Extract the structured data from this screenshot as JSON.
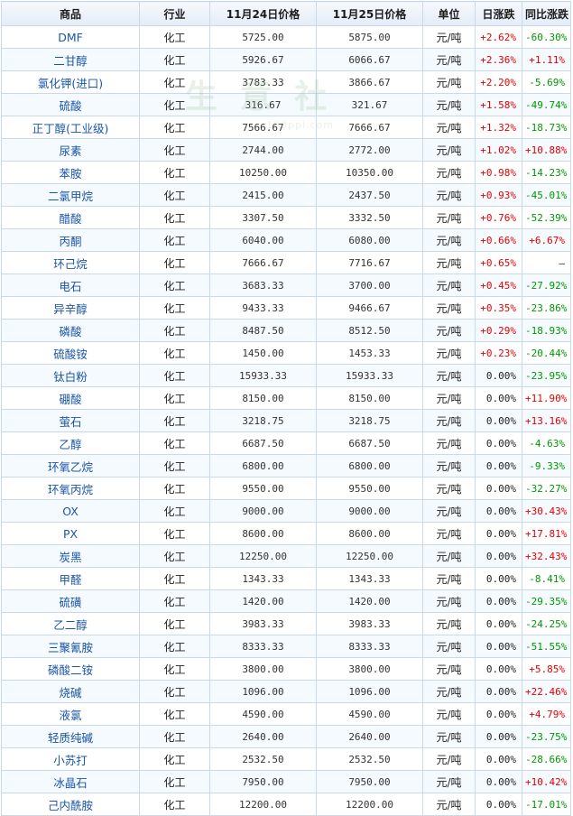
{
  "headers": {
    "name": "商品",
    "industry": "行业",
    "price_prev": "11月24日价格",
    "price_cur": "11月25日价格",
    "unit": "单位",
    "daily": "日涨跌",
    "yoy": "同比涨跌"
  },
  "watermark": {
    "text": "生 意 社",
    "sub": "100ppi.com"
  },
  "rows": [
    {
      "name": "DMF",
      "industry": "化工",
      "p1": "5725.00",
      "p2": "5875.00",
      "unit": "元/吨",
      "daily": "+2.62%",
      "yoy": "-60.30%"
    },
    {
      "name": "二甘醇",
      "industry": "化工",
      "p1": "5926.67",
      "p2": "6066.67",
      "unit": "元/吨",
      "daily": "+2.36%",
      "yoy": "+1.11%"
    },
    {
      "name": "氯化钾(进口)",
      "industry": "化工",
      "p1": "3783.33",
      "p2": "3866.67",
      "unit": "元/吨",
      "daily": "+2.20%",
      "yoy": "-5.69%"
    },
    {
      "name": "硫酸",
      "industry": "化工",
      "p1": "316.67",
      "p2": "321.67",
      "unit": "元/吨",
      "daily": "+1.58%",
      "yoy": "-49.74%"
    },
    {
      "name": "正丁醇(工业级)",
      "industry": "化工",
      "p1": "7566.67",
      "p2": "7666.67",
      "unit": "元/吨",
      "daily": "+1.32%",
      "yoy": "-18.73%"
    },
    {
      "name": "尿素",
      "industry": "化工",
      "p1": "2744.00",
      "p2": "2772.00",
      "unit": "元/吨",
      "daily": "+1.02%",
      "yoy": "+10.88%"
    },
    {
      "name": "苯胺",
      "industry": "化工",
      "p1": "10250.00",
      "p2": "10350.00",
      "unit": "元/吨",
      "daily": "+0.98%",
      "yoy": "-14.23%"
    },
    {
      "name": "二氯甲烷",
      "industry": "化工",
      "p1": "2415.00",
      "p2": "2437.50",
      "unit": "元/吨",
      "daily": "+0.93%",
      "yoy": "-45.01%"
    },
    {
      "name": "醋酸",
      "industry": "化工",
      "p1": "3307.50",
      "p2": "3332.50",
      "unit": "元/吨",
      "daily": "+0.76%",
      "yoy": "-52.39%"
    },
    {
      "name": "丙酮",
      "industry": "化工",
      "p1": "6040.00",
      "p2": "6080.00",
      "unit": "元/吨",
      "daily": "+0.66%",
      "yoy": "+6.67%"
    },
    {
      "name": "环己烷",
      "industry": "化工",
      "p1": "7666.67",
      "p2": "7716.67",
      "unit": "元/吨",
      "daily": "+0.65%",
      "yoy": "—"
    },
    {
      "name": "电石",
      "industry": "化工",
      "p1": "3683.33",
      "p2": "3700.00",
      "unit": "元/吨",
      "daily": "+0.45%",
      "yoy": "-27.92%"
    },
    {
      "name": "异辛醇",
      "industry": "化工",
      "p1": "9433.33",
      "p2": "9466.67",
      "unit": "元/吨",
      "daily": "+0.35%",
      "yoy": "-23.86%"
    },
    {
      "name": "磷酸",
      "industry": "化工",
      "p1": "8487.50",
      "p2": "8512.50",
      "unit": "元/吨",
      "daily": "+0.29%",
      "yoy": "-18.93%"
    },
    {
      "name": "硫酸铵",
      "industry": "化工",
      "p1": "1450.00",
      "p2": "1453.33",
      "unit": "元/吨",
      "daily": "+0.23%",
      "yoy": "-20.44%"
    },
    {
      "name": "钛白粉",
      "industry": "化工",
      "p1": "15933.33",
      "p2": "15933.33",
      "unit": "元/吨",
      "daily": "0.00%",
      "yoy": "-23.95%"
    },
    {
      "name": "硼酸",
      "industry": "化工",
      "p1": "8150.00",
      "p2": "8150.00",
      "unit": "元/吨",
      "daily": "0.00%",
      "yoy": "+11.90%"
    },
    {
      "name": "萤石",
      "industry": "化工",
      "p1": "3218.75",
      "p2": "3218.75",
      "unit": "元/吨",
      "daily": "0.00%",
      "yoy": "+13.16%"
    },
    {
      "name": "乙醇",
      "industry": "化工",
      "p1": "6687.50",
      "p2": "6687.50",
      "unit": "元/吨",
      "daily": "0.00%",
      "yoy": "-4.63%"
    },
    {
      "name": "环氧乙烷",
      "industry": "化工",
      "p1": "6800.00",
      "p2": "6800.00",
      "unit": "元/吨",
      "daily": "0.00%",
      "yoy": "-9.33%"
    },
    {
      "name": "环氧丙烷",
      "industry": "化工",
      "p1": "9550.00",
      "p2": "9550.00",
      "unit": "元/吨",
      "daily": "0.00%",
      "yoy": "-32.27%"
    },
    {
      "name": "OX",
      "industry": "化工",
      "p1": "9000.00",
      "p2": "9000.00",
      "unit": "元/吨",
      "daily": "0.00%",
      "yoy": "+30.43%"
    },
    {
      "name": "PX",
      "industry": "化工",
      "p1": "8600.00",
      "p2": "8600.00",
      "unit": "元/吨",
      "daily": "0.00%",
      "yoy": "+17.81%"
    },
    {
      "name": "炭黑",
      "industry": "化工",
      "p1": "12250.00",
      "p2": "12250.00",
      "unit": "元/吨",
      "daily": "0.00%",
      "yoy": "+32.43%"
    },
    {
      "name": "甲醛",
      "industry": "化工",
      "p1": "1343.33",
      "p2": "1343.33",
      "unit": "元/吨",
      "daily": "0.00%",
      "yoy": "-8.41%"
    },
    {
      "name": "硫磺",
      "industry": "化工",
      "p1": "1420.00",
      "p2": "1420.00",
      "unit": "元/吨",
      "daily": "0.00%",
      "yoy": "-29.35%"
    },
    {
      "name": "乙二醇",
      "industry": "化工",
      "p1": "3983.33",
      "p2": "3983.33",
      "unit": "元/吨",
      "daily": "0.00%",
      "yoy": "-24.25%"
    },
    {
      "name": "三聚氰胺",
      "industry": "化工",
      "p1": "8333.33",
      "p2": "8333.33",
      "unit": "元/吨",
      "daily": "0.00%",
      "yoy": "-51.55%"
    },
    {
      "name": "磷酸二铵",
      "industry": "化工",
      "p1": "3800.00",
      "p2": "3800.00",
      "unit": "元/吨",
      "daily": "0.00%",
      "yoy": "+5.85%"
    },
    {
      "name": "烧碱",
      "industry": "化工",
      "p1": "1096.00",
      "p2": "1096.00",
      "unit": "元/吨",
      "daily": "0.00%",
      "yoy": "+22.46%"
    },
    {
      "name": "液氯",
      "industry": "化工",
      "p1": "4590.00",
      "p2": "4590.00",
      "unit": "元/吨",
      "daily": "0.00%",
      "yoy": "+4.79%"
    },
    {
      "name": "轻质纯碱",
      "industry": "化工",
      "p1": "2640.00",
      "p2": "2640.00",
      "unit": "元/吨",
      "daily": "0.00%",
      "yoy": "-23.75%"
    },
    {
      "name": "小苏打",
      "industry": "化工",
      "p1": "2532.50",
      "p2": "2532.50",
      "unit": "元/吨",
      "daily": "0.00%",
      "yoy": "-28.66%"
    },
    {
      "name": "冰晶石",
      "industry": "化工",
      "p1": "7950.00",
      "p2": "7950.00",
      "unit": "元/吨",
      "daily": "0.00%",
      "yoy": "+10.42%"
    },
    {
      "name": "己内酰胺",
      "industry": "化工",
      "p1": "12200.00",
      "p2": "12200.00",
      "unit": "元/吨",
      "daily": "0.00%",
      "yoy": "-17.01%"
    }
  ],
  "colors": {
    "up": "#e60000",
    "down": "#009900",
    "link": "#1a55a8",
    "border": "#cad9ea"
  }
}
